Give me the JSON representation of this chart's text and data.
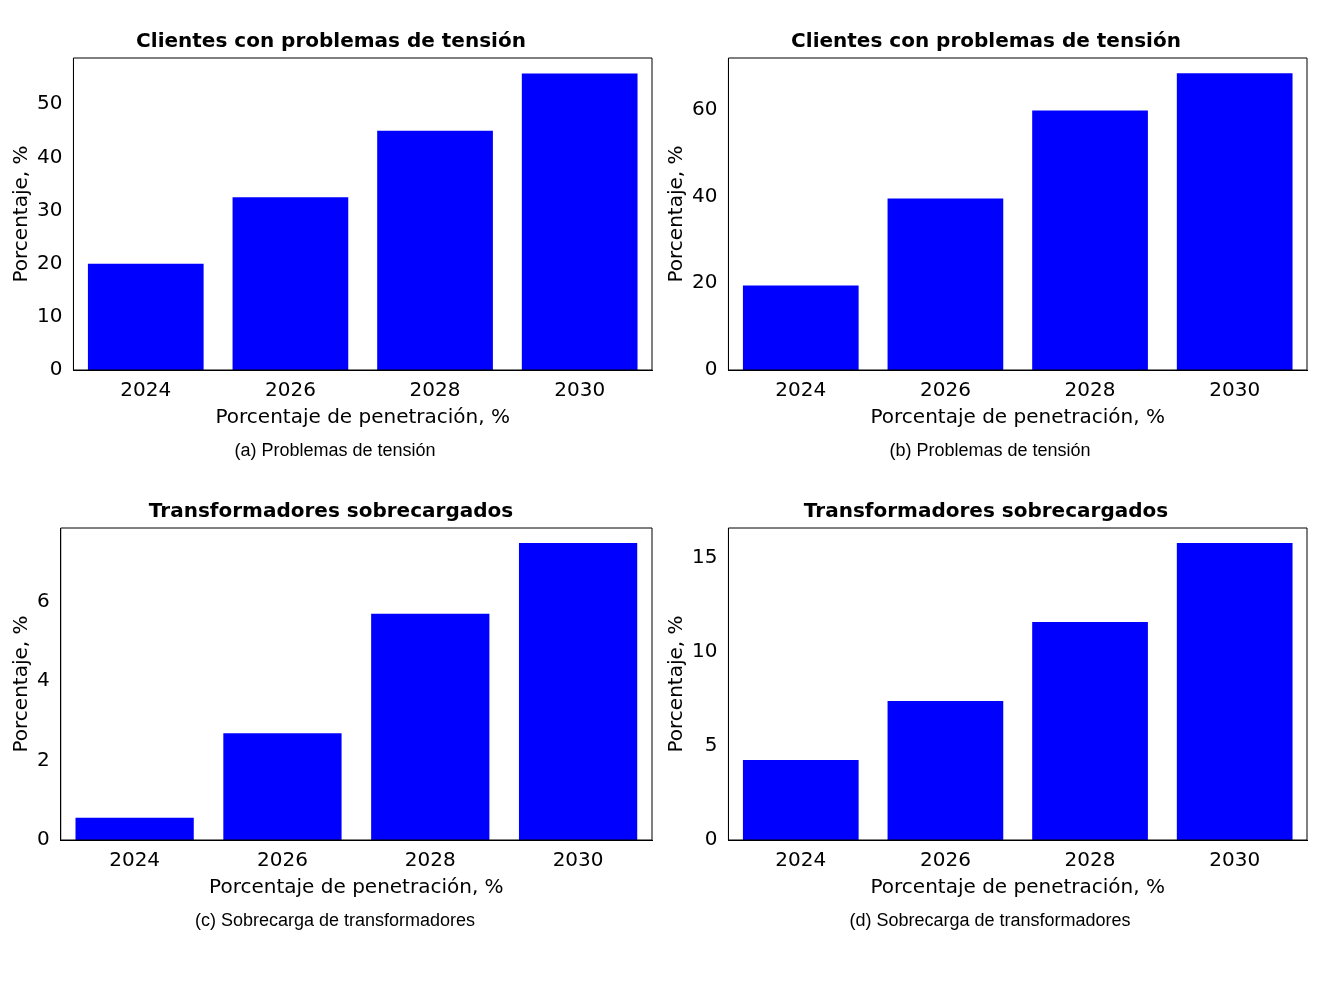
{
  "chart_data": [
    {
      "type": "bar",
      "title": "Clientes con problemas de tensión",
      "xlabel": "Porcentaje de penetración, %",
      "ylabel": "Porcentaje, %",
      "categories": [
        "2024",
        "2026",
        "2028",
        "2030"
      ],
      "values": [
        20,
        32.5,
        45,
        55.8
      ],
      "color": "#0000ff",
      "ylim": [
        0,
        58.7
      ],
      "yticks": [
        0,
        10,
        20,
        30,
        40,
        50
      ],
      "grid": false,
      "legend": false,
      "annotations": [
        "(a) Problemas de tensión"
      ]
    },
    {
      "type": "bar",
      "title": "Clientes con problemas de tensión",
      "xlabel": "Porcentaje de penetración, %",
      "ylabel": "Porcentaje, %",
      "categories": [
        "2024",
        "2026",
        "2028",
        "2030"
      ],
      "values": [
        19.5,
        39.5,
        59.8,
        68.4
      ],
      "color": "#0000ff",
      "ylim": [
        0,
        71.9
      ],
      "yticks": [
        0,
        20,
        40,
        60
      ],
      "grid": false,
      "legend": false,
      "annotations": [
        "(b) Problemas de tensión"
      ]
    },
    {
      "type": "bar",
      "title": "Transformadores sobrecargados",
      "xlabel": "Porcentaje de penetración, %",
      "ylabel": "Porcentaje, %",
      "categories": [
        "2024",
        "2026",
        "2028",
        "2030"
      ],
      "values": [
        0.56,
        2.69,
        5.7,
        7.48
      ],
      "color": "#0000ff",
      "ylim": [
        0,
        7.86
      ],
      "yticks": [
        0,
        2,
        4,
        6
      ],
      "grid": false,
      "legend": false,
      "annotations": [
        "(c) Sobrecarga de transformadores"
      ]
    },
    {
      "type": "bar",
      "title": "Transformadores sobrecargados",
      "xlabel": "Porcentaje de penetración, %",
      "ylabel": "Porcentaje, %",
      "categories": [
        "2024",
        "2026",
        "2028",
        "2030"
      ],
      "values": [
        4.26,
        7.39,
        11.6,
        15.8
      ],
      "color": "#0000ff",
      "ylim": [
        0,
        16.6
      ],
      "yticks": [
        0,
        5,
        10,
        15
      ],
      "grid": false,
      "legend": false,
      "annotations": [
        "(d) Sobrecarga de transformadores"
      ]
    }
  ]
}
